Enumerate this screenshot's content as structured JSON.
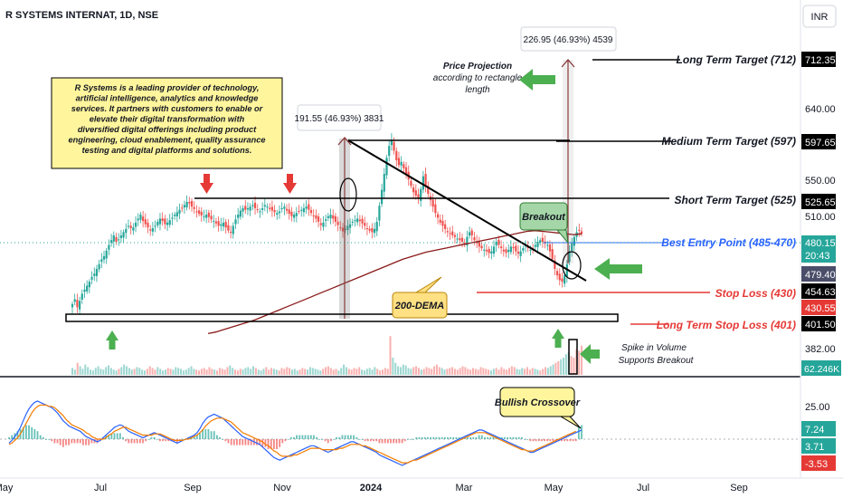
{
  "header": {
    "symbol_title": "R SYSTEMS INTERNAT, 1D, NSE",
    "currency_button": "INR"
  },
  "chart_data": {
    "type": "candlestick",
    "symbol": "R SYSTEMS INTERNAT",
    "interval": "1D",
    "exchange": "NSE",
    "x_ticks": [
      "May",
      "Jul",
      "Sep",
      "Nov",
      "2024",
      "Mar",
      "May",
      "Jul",
      "Sep"
    ],
    "price_scale_labels": [
      "640.00",
      "550.00",
      "510.00",
      "382.00"
    ],
    "price_tags": [
      {
        "text": "712.35",
        "kind": "target"
      },
      {
        "text": "597.65",
        "kind": "target"
      },
      {
        "text": "525.65",
        "kind": "target"
      },
      {
        "text": "480.15",
        "kind": "last"
      },
      {
        "text": "20:43",
        "kind": "countdown"
      },
      {
        "text": "479.40",
        "kind": "ema"
      },
      {
        "text": "454.63",
        "kind": "target"
      },
      {
        "text": "430.55",
        "kind": "stop"
      },
      {
        "text": "401.50",
        "kind": "target"
      },
      {
        "text": "62.246K",
        "kind": "volume"
      }
    ],
    "indicator_scale_labels": [
      "25.00"
    ],
    "indicator_tags": [
      {
        "text": "7.24",
        "kind": "up"
      },
      {
        "text": "3.71",
        "kind": "neutral"
      },
      {
        "text": "-3.53",
        "kind": "down"
      }
    ],
    "levels": [
      {
        "label": "Long Term Target (712)",
        "price": 712
      },
      {
        "label": "Medium Term Target (597)",
        "price": 597
      },
      {
        "label": "Short Term Target (525)",
        "price": 525
      },
      {
        "label": "Best Entry Point (485-470)",
        "price": 480
      },
      {
        "label": "Stop Loss (430)",
        "price": 430
      },
      {
        "label": "Long Term Stop Loss (401)",
        "price": 401
      }
    ],
    "measurements": [
      {
        "text": "191.55 (46.93%) 3831"
      },
      {
        "text": "226.95 (46.93%) 4539"
      }
    ],
    "annotations": {
      "projection": "Price Projection according to rectangle length",
      "breakout": "Breakout",
      "dema": "200-DEMA",
      "volume": "Spike in Volume Supports Breakout",
      "crossover": "Bullish Crossover",
      "description": "R Systems is a leading provider of technology, artificial intelligence, analytics and knowledge services. It partners with customers to enable or elevate their digital transformation with diversified digital offerings including product engineering, cloud enablement, quality assurance testing and digital platforms and solutions."
    },
    "price_series": [
      392,
      398,
      388,
      396,
      405,
      410,
      415,
      420,
      426,
      430,
      436,
      442,
      448,
      452,
      459,
      466,
      472,
      478,
      470,
      473,
      478,
      482,
      486,
      490,
      487,
      488,
      494,
      499,
      504,
      496,
      492,
      488,
      484,
      487,
      490,
      495,
      499,
      496,
      492,
      494,
      497,
      500,
      504,
      507,
      510,
      512,
      516,
      520,
      518,
      514,
      511,
      508,
      505,
      503,
      502,
      504,
      501,
      498,
      496,
      493,
      490,
      492,
      494,
      488,
      484,
      482,
      490,
      498,
      504,
      509,
      512,
      510,
      512,
      514,
      516,
      512,
      510,
      508,
      512,
      516,
      514,
      511,
      509,
      507,
      506,
      508,
      512,
      514,
      509,
      505,
      502,
      504,
      506,
      508,
      510,
      512,
      514,
      510,
      506,
      502,
      499,
      495,
      491,
      494,
      498,
      502,
      504,
      499,
      495,
      491,
      487,
      483,
      486,
      490,
      492,
      495,
      497,
      499,
      496,
      493,
      490,
      486,
      484,
      482,
      486,
      495,
      515,
      535,
      555,
      575,
      590,
      598,
      584,
      572,
      566,
      570,
      562,
      555,
      548,
      540,
      532,
      528,
      524,
      536,
      552,
      540,
      530,
      522,
      514,
      506,
      500,
      494,
      490,
      486,
      482,
      480,
      478,
      476,
      474,
      472,
      470,
      468,
      476,
      482,
      478,
      472,
      468,
      464,
      462,
      460,
      458,
      456,
      458,
      464,
      470,
      466,
      462,
      458,
      456,
      460,
      464,
      462,
      458,
      455,
      458,
      462,
      465,
      462,
      460,
      462,
      466,
      470,
      472,
      470,
      468,
      466,
      458,
      448,
      436,
      428,
      422,
      420,
      428,
      442,
      458,
      468,
      476,
      482,
      484,
      480
    ],
    "ema200_series": [
      355,
      357,
      360,
      363,
      366,
      369,
      372,
      376,
      380,
      384,
      388,
      392,
      396,
      400,
      404,
      408,
      412,
      416,
      420,
      424,
      428,
      432,
      436,
      440,
      444,
      448,
      451,
      454,
      457,
      459,
      461,
      463,
      465,
      467,
      469,
      471,
      473,
      475,
      477,
      479,
      481,
      483,
      484,
      483,
      482,
      481,
      480,
      479,
      480
    ],
    "volume_series": [
      8,
      6,
      14,
      10,
      7,
      12,
      9,
      6,
      5,
      8,
      10,
      7,
      6,
      9,
      11,
      8,
      6,
      5,
      7,
      9,
      12,
      10,
      8,
      6,
      7,
      9,
      8,
      6,
      5,
      7,
      10,
      8,
      6,
      9,
      7,
      5,
      6,
      8,
      7,
      6,
      9,
      8,
      7,
      5,
      6,
      8,
      10,
      7,
      6,
      5,
      7,
      8,
      6,
      9,
      7,
      6,
      5,
      8,
      7,
      6,
      9,
      11,
      8,
      6,
      5,
      7,
      6,
      8,
      9,
      7,
      10,
      8,
      6,
      5,
      7,
      9,
      6,
      8,
      7,
      6,
      5,
      8,
      7,
      9,
      8,
      6,
      7,
      5,
      6,
      8,
      7,
      6,
      9,
      8,
      7,
      6,
      5,
      7,
      9,
      10,
      8,
      6,
      7,
      5,
      8,
      12,
      9,
      7,
      6,
      8,
      7,
      9,
      6,
      5,
      7,
      8,
      6,
      9,
      7,
      5,
      6,
      8,
      7,
      45,
      20,
      14,
      10,
      9,
      12,
      11,
      8,
      7,
      9,
      10,
      8,
      6,
      7,
      9,
      8,
      7,
      10,
      12,
      9,
      8,
      6,
      7,
      8,
      9,
      7,
      6,
      8,
      10,
      9,
      7,
      6,
      8,
      7,
      6,
      9,
      8,
      7,
      6,
      5,
      7,
      8,
      6,
      9,
      7,
      6,
      8,
      10,
      9,
      7,
      6,
      8,
      7,
      9,
      6,
      8,
      7,
      6,
      5,
      7,
      9,
      8,
      10,
      12,
      14,
      16,
      18,
      20,
      24,
      26,
      22,
      20,
      30,
      28,
      34
    ],
    "macd_series": [
      -3,
      -1,
      2,
      5,
      9,
      14,
      19,
      23,
      26,
      28,
      29,
      28,
      27,
      26,
      25,
      24,
      22,
      20,
      17,
      14,
      12,
      10,
      9,
      8,
      7,
      6,
      4,
      2,
      1,
      0,
      -1,
      -2,
      -1,
      1,
      3,
      5,
      7,
      9,
      10,
      11,
      10,
      8,
      6,
      5,
      4,
      3,
      2,
      1,
      2,
      3,
      4,
      5,
      4,
      3,
      2,
      1,
      0,
      -1,
      -2,
      -3,
      -2,
      -1,
      0,
      1,
      2,
      3,
      5,
      8,
      12,
      15,
      17,
      18,
      19,
      18,
      17,
      16,
      14,
      12,
      10,
      8,
      6,
      4,
      2,
      1,
      0,
      -1,
      -2,
      -3,
      -4,
      -6,
      -8,
      -10,
      -12,
      -14,
      -15,
      -16,
      -15,
      -14,
      -13,
      -12,
      -11,
      -10,
      -9,
      -8,
      -7,
      -6,
      -5,
      -5,
      -6,
      -7,
      -8,
      -9,
      -10,
      -9,
      -8,
      -7,
      -6,
      -5,
      -4,
      -3,
      -2,
      -2,
      -3,
      -4,
      -5,
      -6,
      -7,
      -8,
      -9,
      -10,
      -12,
      -13,
      -14,
      -15,
      -16,
      -17,
      -18,
      -19,
      -20,
      -19,
      -18,
      -17,
      -16,
      -15,
      -14,
      -13,
      -12,
      -11,
      -10,
      -9,
      -8,
      -7,
      -6,
      -5,
      -4,
      -3,
      -2,
      -1,
      0,
      1,
      2,
      3,
      4,
      5,
      6,
      7,
      7,
      6,
      5,
      4,
      3,
      2,
      1,
      0,
      -1,
      -2,
      -3,
      -4,
      -5,
      -6,
      -7,
      -8,
      -9,
      -10,
      -10,
      -9,
      -8,
      -7,
      -6,
      -5,
      -4,
      -3,
      -2,
      -1,
      0,
      1,
      2,
      3,
      4,
      5,
      6,
      7
    ],
    "signal_series": [
      -4,
      -3,
      -1,
      1,
      4,
      8,
      12,
      16,
      20,
      23,
      25,
      26,
      26,
      26,
      25,
      25,
      24,
      22,
      20,
      18,
      15,
      13,
      11,
      10,
      9,
      8,
      7,
      5,
      4,
      2,
      1,
      0,
      0,
      0,
      1,
      3,
      4,
      6,
      7,
      8,
      9,
      9,
      8,
      7,
      6,
      5,
      4,
      3,
      3,
      3,
      3,
      4,
      4,
      4,
      3,
      2,
      1,
      0,
      -1,
      -1,
      -1,
      -1,
      0,
      0,
      1,
      2,
      3,
      5,
      7,
      10,
      12,
      14,
      15,
      16,
      16,
      16,
      15,
      14,
      13,
      11,
      9,
      7,
      5,
      4,
      3,
      2,
      1,
      0,
      -1,
      -2,
      -4,
      -5,
      -7,
      -9,
      -10,
      -12,
      -13,
      -13,
      -13,
      -13,
      -12,
      -12,
      -11,
      -10,
      -9,
      -8,
      -7,
      -7,
      -7,
      -7,
      -8,
      -8,
      -8,
      -8,
      -8,
      -8,
      -7,
      -7,
      -6,
      -5,
      -4,
      -4,
      -4,
      -4,
      -5,
      -5,
      -6,
      -7,
      -8,
      -9,
      -10,
      -11,
      -12,
      -13,
      -14,
      -15,
      -16,
      -17,
      -18,
      -18,
      -18,
      -17,
      -16,
      -16,
      -15,
      -14,
      -13,
      -12,
      -11,
      -10,
      -9,
      -8,
      -7,
      -6,
      -5,
      -4,
      -3,
      -2,
      -1,
      0,
      1,
      2,
      3,
      4,
      5,
      5,
      5,
      5,
      4,
      3,
      2,
      1,
      0,
      -1,
      -2,
      -3,
      -4,
      -5,
      -6,
      -7,
      -8,
      -8,
      -9,
      -9,
      -9,
      -8,
      -7,
      -6,
      -5,
      -4,
      -3,
      -2,
      -1,
      0,
      1,
      2,
      3,
      4,
      5,
      6
    ],
    "colors": {
      "up": "#26a69a",
      "down": "#ef5350",
      "trend_line": "#000000",
      "ema": "#8b1a1a",
      "macd": "#2962ff",
      "signal": "#f57c00",
      "projection": "#8b3a3a",
      "note_bg": "#fff59d",
      "breakout_bg": "#a5d6a7",
      "arrow_green": "#4caf50",
      "arrow_red": "#e53935",
      "stop_red": "#e53935",
      "entry_blue": "#2962ff"
    }
  }
}
